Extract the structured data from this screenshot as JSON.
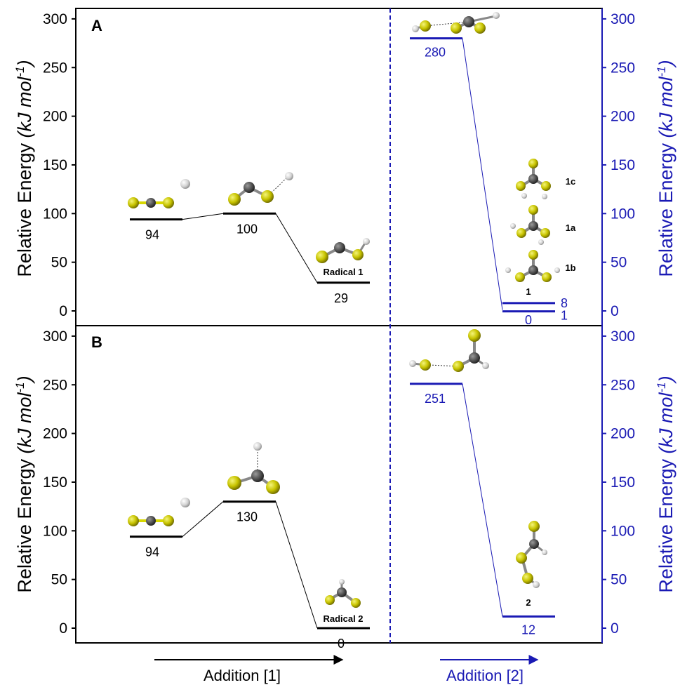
{
  "colors": {
    "left_axis": "#000000",
    "right_axis": "#1a1ab4",
    "sulfur": "#c8c800",
    "carbon": "#555555",
    "hydrogen": "#d8d8d8"
  },
  "y_axis": {
    "left_title_plain": "Relative Energy ",
    "left_title_italic": "(kJ mol",
    "unit_exponent": "-1",
    "right_title_plain": "Relative Energy ",
    "right_title_italic": "(kJ mol",
    "ticks": [
      "0",
      "50",
      "100",
      "150",
      "200",
      "250",
      "300"
    ],
    "tick_values": [
      0,
      50,
      100,
      150,
      200,
      250,
      300
    ]
  },
  "bottom": {
    "left_label": "Addition [1]",
    "right_label": "Addition [2]"
  },
  "chart_data": [
    {
      "type": "energy-level-diagram",
      "panel": "A",
      "ylabel": "Relative Energy (kJ mol-1)",
      "ylim": [
        -15,
        310
      ],
      "left_levels": [
        {
          "value": 94,
          "label": "94"
        },
        {
          "value": 100,
          "label": "100"
        },
        {
          "value": 29,
          "label": "29",
          "name": "Radical 1"
        }
      ],
      "right_levels": [
        {
          "value": 280,
          "label": "280"
        },
        {
          "value": 8,
          "label": "8"
        },
        {
          "value": 1,
          "label": "1"
        },
        {
          "value": 0,
          "label": "0"
        }
      ],
      "product_name": "1",
      "conformer_labels": [
        "1c",
        "1a",
        "1b"
      ]
    },
    {
      "type": "energy-level-diagram",
      "panel": "B",
      "ylabel": "Relative Energy (kJ mol-1)",
      "ylim": [
        -15,
        310
      ],
      "left_levels": [
        {
          "value": 94,
          "label": "94"
        },
        {
          "value": 130,
          "label": "130"
        },
        {
          "value": 0,
          "label": "0",
          "name": "Radical 2"
        }
      ],
      "right_levels": [
        {
          "value": 251,
          "label": "251"
        },
        {
          "value": 12,
          "label": "12"
        }
      ],
      "product_name": "2"
    }
  ]
}
